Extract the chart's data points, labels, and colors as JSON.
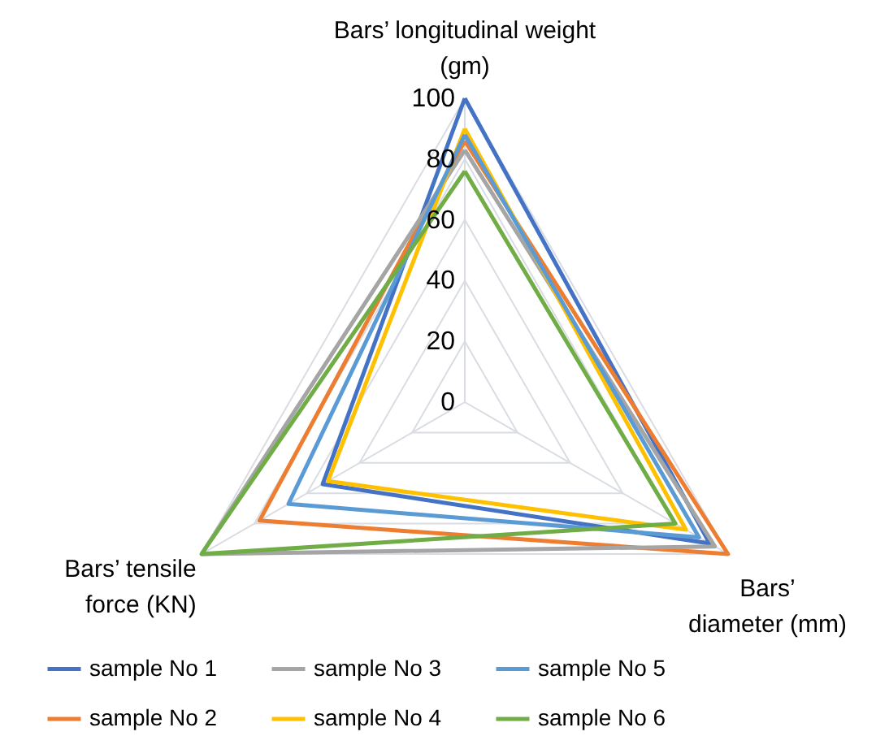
{
  "chart_data": {
    "type": "radar",
    "categories": [
      "Bars’ longitudinal weight\n(gm)",
      "Bars’\ndiameter (mm)",
      "Bars’ tensile\nforce (KN)"
    ],
    "ylim": [
      0,
      100
    ],
    "yticks": [
      0,
      20,
      40,
      60,
      80,
      100
    ],
    "grid": true,
    "legend": "bottom",
    "series": [
      {
        "name": "sample No 1",
        "color": "#4472c4",
        "values": [
          100,
          93,
          54
        ]
      },
      {
        "name": "sample No 2",
        "color": "#ed7d31",
        "values": [
          86,
          100,
          78
        ]
      },
      {
        "name": "sample No 3",
        "color": "#a5a5a5",
        "values": [
          83,
          95,
          100
        ]
      },
      {
        "name": "sample No 4",
        "color": "#ffc000",
        "values": [
          90,
          84,
          52
        ]
      },
      {
        "name": "sample No 5",
        "color": "#5b9bd5",
        "values": [
          88,
          89,
          67
        ]
      },
      {
        "name": "sample No 6",
        "color": "#70ad47",
        "values": [
          76,
          80,
          100
        ]
      }
    ]
  }
}
